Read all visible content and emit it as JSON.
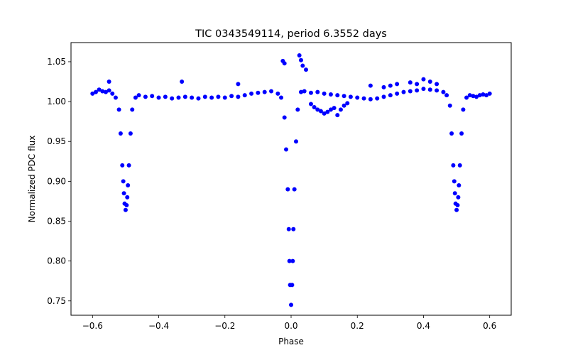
{
  "chart_data": {
    "type": "scatter",
    "title": "TIC 0343549114, period 6.3552 days",
    "xlabel": "Phase",
    "ylabel": "Normalized PDC flux",
    "xlim": [
      -0.665,
      0.665
    ],
    "ylim": [
      0.732,
      1.074
    ],
    "xticks": [
      -0.6,
      -0.4,
      -0.2,
      0.0,
      0.2,
      0.4,
      0.6
    ],
    "xtick_labels": [
      "−0.6",
      "−0.4",
      "−0.2",
      "0.0",
      "0.2",
      "0.4",
      "0.6"
    ],
    "yticks": [
      0.75,
      0.8,
      0.85,
      0.9,
      0.95,
      1.0,
      1.05
    ],
    "ytick_labels": [
      "0.75",
      "0.80",
      "0.85",
      "0.90",
      "0.95",
      "1.00",
      "1.05"
    ],
    "grid": false,
    "marker_color": "#0000ff",
    "series": [
      {
        "x": [
          -0.6,
          -0.59,
          -0.58,
          -0.57,
          -0.56,
          -0.55,
          -0.54,
          -0.53,
          -0.52,
          -0.515,
          -0.51,
          -0.507,
          -0.505,
          -0.503,
          -0.5,
          -0.497,
          -0.495,
          -0.493,
          -0.49,
          -0.485,
          -0.48,
          -0.47,
          -0.46,
          -0.44,
          -0.42,
          -0.4,
          -0.38,
          -0.36,
          -0.34,
          -0.32,
          -0.3,
          -0.28,
          -0.26,
          -0.24,
          -0.22,
          -0.2,
          -0.18,
          -0.16,
          -0.14,
          -0.12,
          -0.1,
          -0.08,
          -0.06,
          -0.04,
          -0.03,
          -0.02,
          -0.015,
          -0.01,
          -0.007,
          -0.005,
          -0.003,
          0.0,
          0.003,
          0.005,
          0.007,
          0.01,
          0.015,
          0.02,
          0.03,
          0.04,
          0.06,
          0.08,
          0.1,
          0.12,
          0.14,
          0.16,
          0.18,
          0.2,
          0.22,
          0.24,
          0.26,
          0.28,
          0.3,
          0.32,
          0.34,
          0.36,
          0.38,
          0.4,
          0.42,
          0.44,
          0.46,
          0.47,
          0.48,
          0.485,
          0.49,
          0.493,
          0.495,
          0.497,
          0.5,
          0.503,
          0.505,
          0.507,
          0.51,
          0.515,
          0.52,
          0.53,
          0.54,
          0.55,
          0.56,
          0.57,
          0.58,
          0.59,
          0.6,
          -0.025,
          -0.02,
          0.025,
          0.03,
          0.035,
          0.045,
          0.06,
          0.07,
          0.08,
          0.09,
          0.1,
          0.11,
          0.12,
          0.13,
          0.14,
          0.15,
          0.16,
          0.17,
          0.24,
          0.28,
          0.32,
          0.36,
          0.4,
          0.42,
          0.44,
          -0.55,
          -0.33,
          -0.16,
          0.3,
          0.38
        ],
        "y": [
          1.01,
          1.012,
          1.015,
          1.013,
          1.012,
          1.014,
          1.01,
          1.005,
          0.99,
          0.96,
          0.92,
          0.9,
          0.885,
          0.872,
          0.864,
          0.87,
          0.88,
          0.895,
          0.92,
          0.96,
          0.99,
          1.005,
          1.008,
          1.006,
          1.007,
          1.005,
          1.006,
          1.004,
          1.005,
          1.006,
          1.005,
          1.004,
          1.006,
          1.005,
          1.006,
          1.005,
          1.007,
          1.006,
          1.008,
          1.01,
          1.011,
          1.012,
          1.013,
          1.01,
          1.005,
          0.98,
          0.94,
          0.89,
          0.84,
          0.8,
          0.77,
          0.745,
          0.77,
          0.8,
          0.84,
          0.89,
          0.95,
          0.99,
          1.012,
          1.013,
          1.011,
          1.012,
          1.01,
          1.009,
          1.008,
          1.007,
          1.006,
          1.005,
          1.004,
          1.003,
          1.004,
          1.006,
          1.008,
          1.01,
          1.012,
          1.013,
          1.014,
          1.016,
          1.015,
          1.014,
          1.012,
          1.008,
          0.995,
          0.96,
          0.92,
          0.9,
          0.885,
          0.872,
          0.864,
          0.87,
          0.88,
          0.895,
          0.92,
          0.96,
          0.99,
          1.005,
          1.008,
          1.007,
          1.006,
          1.008,
          1.009,
          1.008,
          1.01,
          1.051,
          1.048,
          1.058,
          1.052,
          1.045,
          1.04,
          0.997,
          0.993,
          0.99,
          0.988,
          0.985,
          0.987,
          0.99,
          0.992,
          0.983,
          0.99,
          0.995,
          0.998,
          1.02,
          1.018,
          1.022,
          1.024,
          1.028,
          1.025,
          1.022,
          1.025,
          1.025,
          1.022,
          1.02,
          1.022
        ]
      }
    ]
  }
}
